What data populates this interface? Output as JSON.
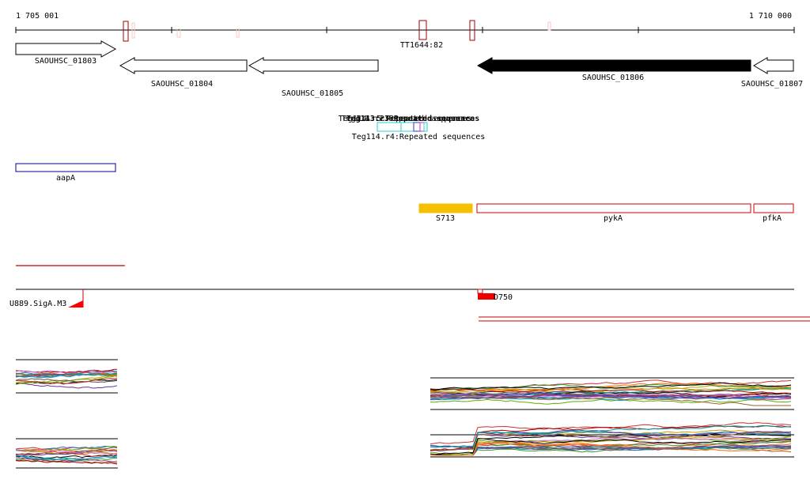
{
  "ruler": {
    "start_label": "1 705 001",
    "end_label": "1 710 000"
  },
  "terminator_label": "TT1644:82",
  "genes": [
    {
      "name": "SAOUHSC_01803",
      "strand": "+",
      "filled": false
    },
    {
      "name": "SAOUHSC_01804",
      "strand": "-",
      "filled": false
    },
    {
      "name": "SAOUHSC_01805",
      "strand": "-",
      "filled": false
    },
    {
      "name": "SAOUHSC_01806",
      "strand": "-",
      "filled": true
    },
    {
      "name": "SAOUHSC_01807",
      "strand": "-",
      "filled": false
    }
  ],
  "repeats": {
    "overlap_label": "Teg114.r2:Repeated sequences",
    "bottom_label": "Teg114.r4:Repeated sequences",
    "overlap_ghost_1": "Teg113.r3:Repeated sequences",
    "overlap_ghost_2": "Teg114.r5:Repeated sequences"
  },
  "operons": {
    "aapA": "aapA",
    "S713": "S713",
    "pykA": "pykA",
    "pfkA": "pfkA"
  },
  "promoters": {
    "sigA_label": "U889.SigA.M3",
    "tss_label": "D750"
  },
  "colors": {
    "ruler": "#000000",
    "terminator": "#a00000",
    "terminator_faint": "#f4c8c8",
    "gene_outline": "#000000",
    "gene_filled": "#000000",
    "repeat_cyan": "#33cccc",
    "repeat_blue": "#3333cc",
    "repeat_magenta": "#cc33cc",
    "aapA_outline": "#000099",
    "s713_fill": "#f5c000",
    "operon_red": "#cc0000",
    "promoter_red": "#ff0000"
  }
}
